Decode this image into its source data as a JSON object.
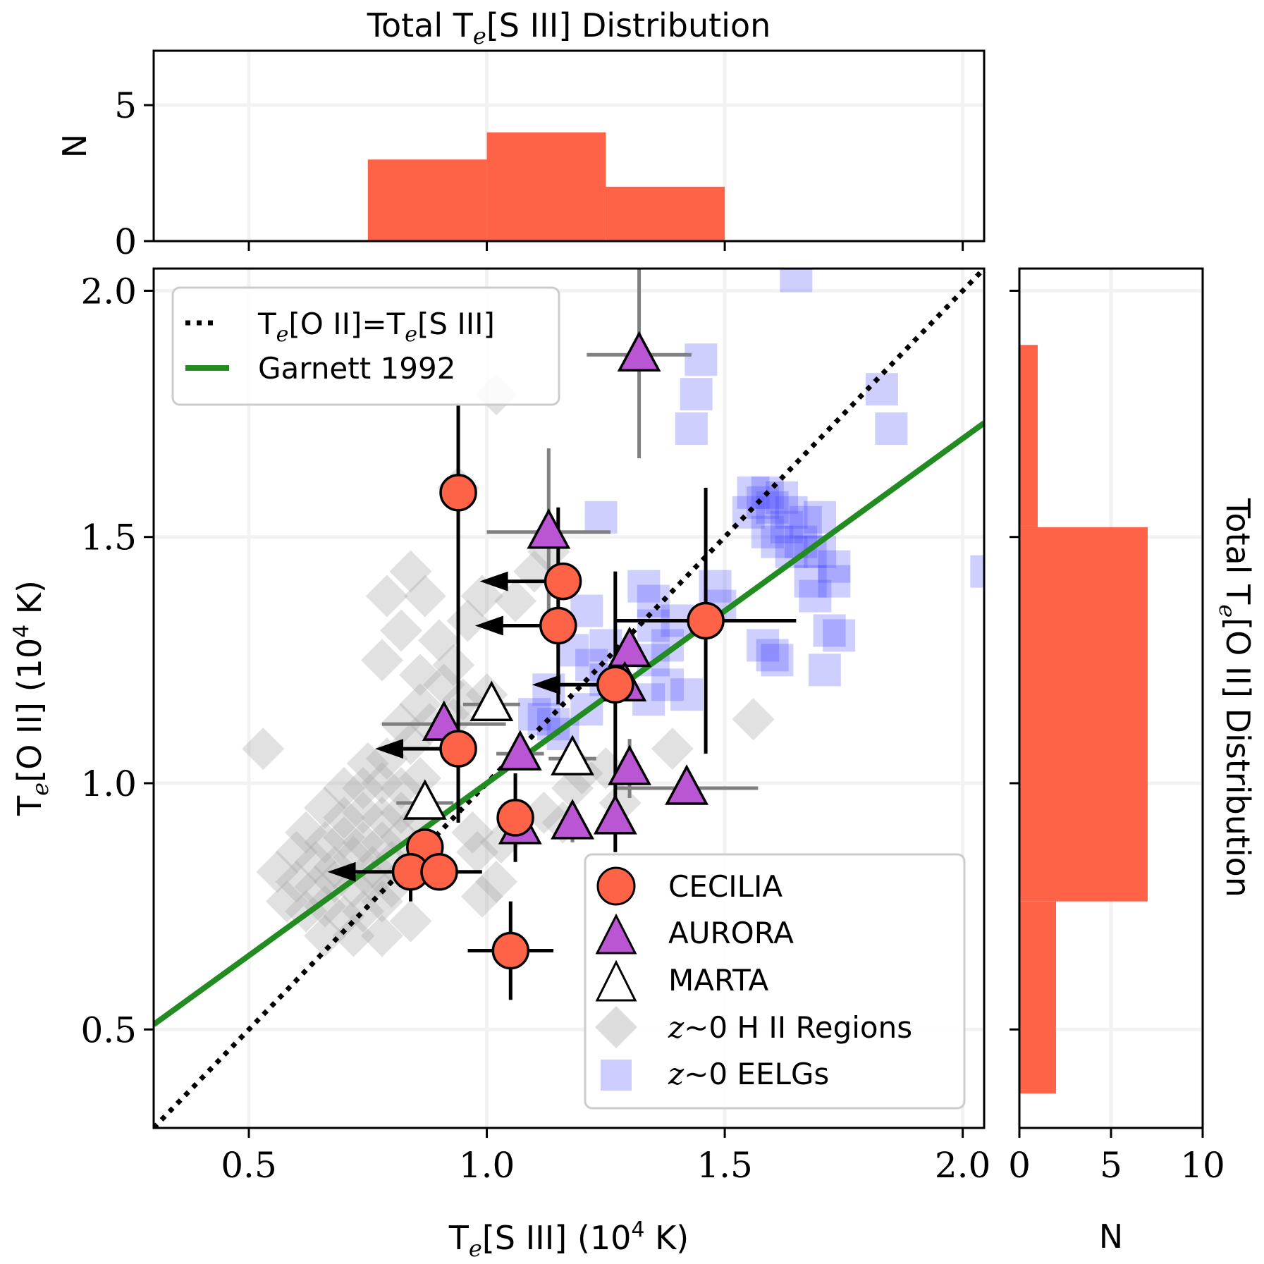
{
  "colors": {
    "cecilia": "#ff6347",
    "aurora": "#ba55d3",
    "marta": "#ffffff",
    "hii": "#aaaaaa",
    "eelg": "#4040ff",
    "garnett": "#228b22",
    "hist": "#ff6347",
    "grid": "#f2f2f2"
  },
  "chart_data": [
    {
      "id": "main",
      "type": "scatter",
      "xlabel_main": "T",
      "xlabel_sub": "e",
      "xlabel_rest": "[S III] (10",
      "xlabel_sup": "4",
      "xlabel_end": " K)",
      "ylabel_main": "T",
      "ylabel_sub": "e",
      "ylabel_rest": "[O II] (10",
      "ylabel_sup": "4",
      "ylabel_end": " K)",
      "xlim": [
        0.3,
        2.045
      ],
      "ylim": [
        0.3,
        2.045
      ],
      "xticks": [
        "0.5",
        "1.0",
        "1.5",
        "2.0"
      ],
      "xtick_values": [
        0.5,
        1.0,
        1.5,
        2.0
      ],
      "yticks": [
        "0.5",
        "1.0",
        "1.5",
        "2.0"
      ],
      "ytick_values": [
        0.5,
        1.0,
        1.5,
        2.0
      ],
      "grid": true,
      "lines": [
        {
          "name": "Te[O II]=Te[S III]",
          "style": "dotted",
          "color": "#000000",
          "points": [
            [
              0.3,
              0.3
            ],
            [
              2.045,
              2.045
            ]
          ]
        },
        {
          "name": "Garnett 1992",
          "style": "solid",
          "color": "#228b22",
          "slope": 0.7,
          "intercept": 0.3
        }
      ],
      "legend_lines": {
        "location": "upper-left",
        "entries": [
          {
            "label_parts": [
              "T",
              "e",
              "[O II]=T",
              "e",
              "[S III]"
            ],
            "style": "dotted"
          },
          {
            "label": "Garnett 1992",
            "style": "solid-green"
          }
        ]
      },
      "legend_markers": {
        "location": "lower-right",
        "entries": [
          {
            "label": "CECILIA",
            "marker": "circle"
          },
          {
            "label": "AURORA",
            "marker": "triangle-filled"
          },
          {
            "label": "MARTA",
            "marker": "triangle-open"
          },
          {
            "label_italic": "z",
            "label": "∼0 H II Regions",
            "marker": "diamond"
          },
          {
            "label_italic": "z",
            "label": "∼0 EELGs",
            "marker": "square"
          }
        ]
      },
      "series": [
        {
          "name": "CECILIA",
          "marker": "circle",
          "points": [
            {
              "x": 0.94,
              "y": 1.59,
              "xerr": [
                0.03,
                0.03
              ],
              "yerr": [
                0.67,
                0.18
              ]
            },
            {
              "x": 1.16,
              "y": 1.41,
              "xerr": [
                0.0,
                0.0
              ],
              "yerr": [
                0.0,
                0.0
              ],
              "upper_limit_x": true
            },
            {
              "x": 1.15,
              "y": 1.32,
              "xerr": [
                0.0,
                0.0
              ],
              "yerr": [
                0.16,
                0.24
              ],
              "upper_limit_x": true
            },
            {
              "x": 1.27,
              "y": 1.2,
              "xerr": [
                0.0,
                0.0
              ],
              "yerr": [
                0.34,
                0.23
              ],
              "upper_limit_x": true
            },
            {
              "x": 1.46,
              "y": 1.33,
              "xerr": [
                0.19,
                0.19
              ],
              "yerr": [
                0.27,
                0.27
              ]
            },
            {
              "x": 0.94,
              "y": 1.07,
              "xerr": [
                0.0,
                0.0
              ],
              "yerr": [
                0.15,
                0.0
              ],
              "upper_limit_x": true
            },
            {
              "x": 1.06,
              "y": 0.93,
              "xerr": [
                0.0,
                0.0
              ],
              "yerr": [
                0.09,
                0.09
              ]
            },
            {
              "x": 0.87,
              "y": 0.87,
              "xerr": [
                0.03,
                0.03
              ],
              "yerr": [
                0.02,
                0.02
              ]
            },
            {
              "x": 0.84,
              "y": 0.82,
              "xerr": [
                0.0,
                0.0
              ],
              "yerr": [
                0.06,
                0.0
              ],
              "upper_limit_x": true
            },
            {
              "x": 0.9,
              "y": 0.82,
              "xerr": [
                0.0,
                0.09
              ],
              "yerr": [
                0.0,
                0.0
              ]
            },
            {
              "x": 1.05,
              "y": 0.66,
              "xerr": [
                0.09,
                0.09
              ],
              "yerr": [
                0.1,
                0.1
              ]
            }
          ]
        },
        {
          "name": "AURORA",
          "marker": "triangle-filled",
          "points": [
            {
              "x": 1.32,
              "y": 1.87,
              "xerr": [
                0.11,
                0.11
              ],
              "yerr": [
                0.21,
                0.21
              ]
            },
            {
              "x": 1.13,
              "y": 1.51,
              "xerr": [
                0.13,
                0.13
              ],
              "yerr": [
                0.17,
                0.17
              ]
            },
            {
              "x": 1.3,
              "y": 1.27,
              "xerr": [
                0.0,
                0.0
              ],
              "yerr": [
                0.0,
                0.0
              ]
            },
            {
              "x": 1.29,
              "y": 1.2,
              "xerr": [
                0.0,
                0.0
              ],
              "yerr": [
                0.0,
                0.0
              ]
            },
            {
              "x": 0.91,
              "y": 1.12,
              "xerr": [
                0.13,
                0.13
              ],
              "yerr": [
                0.0,
                0.0
              ]
            },
            {
              "x": 1.07,
              "y": 1.06,
              "xerr": [
                0.05,
                0.05
              ],
              "yerr": [
                0.0,
                0.0
              ]
            },
            {
              "x": 1.3,
              "y": 1.03,
              "xerr": [
                0.0,
                0.0
              ],
              "yerr": [
                0.06,
                0.06
              ]
            },
            {
              "x": 1.42,
              "y": 0.99,
              "xerr": [
                0.15,
                0.15
              ],
              "yerr": [
                0.0,
                0.0
              ]
            },
            {
              "x": 1.18,
              "y": 0.92,
              "xerr": [
                0.0,
                0.0
              ],
              "yerr": [
                0.04,
                0.04
              ]
            },
            {
              "x": 1.27,
              "y": 0.93,
              "xerr": [
                0.0,
                0.0
              ],
              "yerr": [
                0.0,
                0.0
              ]
            },
            {
              "x": 1.07,
              "y": 0.91,
              "xerr": [
                0.0,
                0.0
              ],
              "yerr": [
                0.0,
                0.0
              ]
            }
          ]
        },
        {
          "name": "MARTA",
          "marker": "triangle-open",
          "points": [
            {
              "x": 1.01,
              "y": 1.16,
              "xerr": [
                0.06,
                0.06
              ],
              "yerr": [
                0.0,
                0.0
              ]
            },
            {
              "x": 1.18,
              "y": 1.05,
              "xerr": [
                0.05,
                0.05
              ],
              "yerr": [
                0.02,
                0.02
              ]
            },
            {
              "x": 0.87,
              "y": 0.96,
              "xerr": [
                0.06,
                0.06
              ],
              "yerr": [
                0.0,
                0.0
              ]
            }
          ]
        },
        {
          "name": "z~0 H II Regions",
          "marker": "diamond",
          "points": [
            [
              0.84,
              1.43
            ],
            [
              0.79,
              1.38
            ],
            [
              0.82,
              1.31
            ],
            [
              0.87,
              1.38
            ],
            [
              0.78,
              1.25
            ],
            [
              0.9,
              1.29
            ],
            [
              0.96,
              1.33
            ],
            [
              0.93,
              1.24
            ],
            [
              0.86,
              1.22
            ],
            [
              0.99,
              1.38
            ],
            [
              1.06,
              1.37
            ],
            [
              1.1,
              1.43
            ],
            [
              1.13,
              1.47
            ],
            [
              0.94,
              1.6
            ],
            [
              1.02,
              1.79
            ],
            [
              0.91,
              1.2
            ],
            [
              0.95,
              1.17
            ],
            [
              1.0,
              1.18
            ],
            [
              0.86,
              1.16
            ],
            [
              0.82,
              1.12
            ],
            [
              0.88,
              1.12
            ],
            [
              0.93,
              1.13
            ],
            [
              0.84,
              1.08
            ],
            [
              0.79,
              1.05
            ],
            [
              0.75,
              1.04
            ],
            [
              0.53,
              1.07
            ],
            [
              0.7,
              0.99
            ],
            [
              0.74,
              0.99
            ],
            [
              0.78,
              1.0
            ],
            [
              0.82,
              0.99
            ],
            [
              0.86,
              1.01
            ],
            [
              0.66,
              0.95
            ],
            [
              0.7,
              0.93
            ],
            [
              0.74,
              0.94
            ],
            [
              0.78,
              0.93
            ],
            [
              0.82,
              0.94
            ],
            [
              0.86,
              0.93
            ],
            [
              0.62,
              0.9
            ],
            [
              0.66,
              0.88
            ],
            [
              0.7,
              0.89
            ],
            [
              0.74,
              0.88
            ],
            [
              0.78,
              0.88
            ],
            [
              0.82,
              0.89
            ],
            [
              0.6,
              0.86
            ],
            [
              0.64,
              0.84
            ],
            [
              0.68,
              0.83
            ],
            [
              0.72,
              0.85
            ],
            [
              0.76,
              0.83
            ],
            [
              0.8,
              0.84
            ],
            [
              0.56,
              0.82
            ],
            [
              0.6,
              0.8
            ],
            [
              0.64,
              0.79
            ],
            [
              0.68,
              0.8
            ],
            [
              0.72,
              0.79
            ],
            [
              0.76,
              0.8
            ],
            [
              0.8,
              0.79
            ],
            [
              0.58,
              0.76
            ],
            [
              0.62,
              0.74
            ],
            [
              0.66,
              0.75
            ],
            [
              0.7,
              0.73
            ],
            [
              0.74,
              0.74
            ],
            [
              0.78,
              0.76
            ],
            [
              0.66,
              0.69
            ],
            [
              0.72,
              0.69
            ],
            [
              0.78,
              0.69
            ],
            [
              0.84,
              0.72
            ],
            [
              0.97,
              0.9
            ],
            [
              1.03,
              0.88
            ],
            [
              1.12,
              0.94
            ],
            [
              1.16,
              0.92
            ],
            [
              1.18,
              0.99
            ],
            [
              1.2,
              1.02
            ],
            [
              1.25,
              1.03
            ],
            [
              1.39,
              1.07
            ],
            [
              1.56,
              1.13
            ],
            [
              1.28,
              0.96
            ],
            [
              0.99,
              0.77
            ],
            [
              1.02,
              0.8
            ],
            [
              0.98,
              0.86
            ]
          ]
        },
        {
          "name": "z~0 EELGs",
          "marker": "square",
          "points": [
            [
              1.65,
              2.03
            ],
            [
              1.45,
              1.86
            ],
            [
              1.44,
              1.79
            ],
            [
              1.83,
              1.8
            ],
            [
              1.85,
              1.72
            ],
            [
              1.43,
              1.72
            ],
            [
              1.56,
              1.59
            ],
            [
              1.59,
              1.59
            ],
            [
              1.62,
              1.58
            ],
            [
              1.6,
              1.56
            ],
            [
              1.58,
              1.57
            ],
            [
              1.55,
              1.55
            ],
            [
              1.64,
              1.55
            ],
            [
              1.67,
              1.53
            ],
            [
              1.7,
              1.54
            ],
            [
              1.63,
              1.52
            ],
            [
              1.66,
              1.49
            ],
            [
              1.68,
              1.47
            ],
            [
              1.64,
              1.47
            ],
            [
              1.61,
              1.49
            ],
            [
              1.59,
              1.51
            ],
            [
              1.7,
              1.47
            ],
            [
              1.73,
              1.44
            ],
            [
              1.68,
              1.41
            ],
            [
              1.69,
              1.38
            ],
            [
              1.73,
              1.41
            ],
            [
              1.72,
              1.31
            ],
            [
              1.74,
              1.3
            ],
            [
              1.71,
              1.23
            ],
            [
              1.6,
              1.26
            ],
            [
              1.61,
              1.25
            ],
            [
              1.58,
              1.28
            ],
            [
              1.48,
              1.4
            ],
            [
              1.49,
              1.36
            ],
            [
              1.4,
              1.33
            ],
            [
              1.35,
              1.37
            ],
            [
              1.33,
              1.4
            ],
            [
              1.35,
              1.32
            ],
            [
              1.38,
              1.28
            ],
            [
              1.35,
              1.25
            ],
            [
              1.38,
              1.2
            ],
            [
              1.42,
              1.18
            ],
            [
              1.34,
              1.17
            ],
            [
              1.21,
              1.35
            ],
            [
              1.25,
              1.28
            ],
            [
              1.22,
              1.24
            ],
            [
              1.18,
              1.27
            ],
            [
              1.25,
              1.21
            ],
            [
              1.13,
              1.19
            ],
            [
              1.1,
              1.14
            ],
            [
              1.12,
              1.13
            ],
            [
              1.14,
              1.12
            ],
            [
              1.21,
              1.15
            ],
            [
              1.16,
              1.1
            ],
            [
              1.24,
              1.54
            ],
            [
              2.05,
              1.43
            ]
          ]
        }
      ]
    },
    {
      "id": "top-hist",
      "type": "bar",
      "title_parts": [
        "Total T",
        "e",
        "[S III] Distribution"
      ],
      "ylabel": "N",
      "xlim": [
        0.3,
        2.045
      ],
      "ylim": [
        0,
        7
      ],
      "yticks": [
        "0",
        "5"
      ],
      "ytick_values": [
        0,
        5
      ],
      "xtick_values": [
        0.5,
        1.0,
        1.5,
        2.0
      ],
      "bins": [
        0.75,
        1.0,
        1.25,
        1.5
      ],
      "counts": [
        3,
        4,
        2
      ],
      "grid": true
    },
    {
      "id": "right-hist",
      "type": "bar",
      "orientation": "horizontal",
      "title_parts": [
        "Total T",
        "e",
        "[O II] Distribution"
      ],
      "xlabel": "N",
      "xlim": [
        0,
        10
      ],
      "ylim": [
        0.3,
        2.045
      ],
      "xticks": [
        "0",
        "5",
        "10"
      ],
      "xtick_values": [
        0,
        5,
        10
      ],
      "ytick_values": [
        0.5,
        1.0,
        1.5,
        2.0
      ],
      "bins": [
        0.37,
        0.76,
        1.52,
        1.89
      ],
      "counts": [
        2,
        7,
        1
      ],
      "grid": true
    }
  ]
}
